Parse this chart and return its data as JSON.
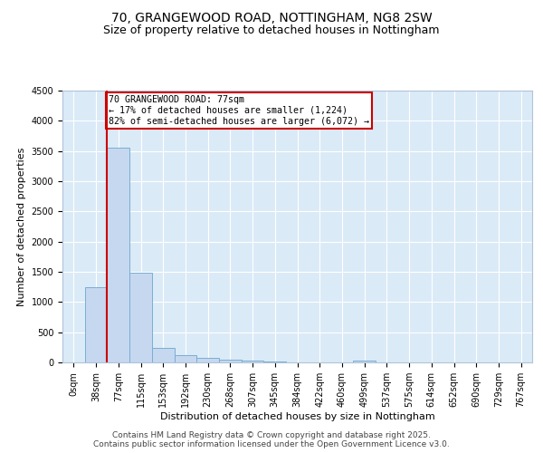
{
  "title_line1": "70, GRANGEWOOD ROAD, NOTTINGHAM, NG8 2SW",
  "title_line2": "Size of property relative to detached houses in Nottingham",
  "xlabel": "Distribution of detached houses by size in Nottingham",
  "ylabel": "Number of detached properties",
  "bar_color": "#c5d8f0",
  "bar_edge_color": "#7aadd4",
  "vline_color": "#cc0000",
  "annotation_text": "70 GRANGEWOOD ROAD: 77sqm\n← 17% of detached houses are smaller (1,224)\n82% of semi-detached houses are larger (6,072) →",
  "annotation_box_color": "#cc0000",
  "plot_bg_color": "#daeaf7",
  "categories": [
    "0sqm",
    "38sqm",
    "77sqm",
    "115sqm",
    "153sqm",
    "192sqm",
    "230sqm",
    "268sqm",
    "307sqm",
    "345sqm",
    "384sqm",
    "422sqm",
    "460sqm",
    "499sqm",
    "537sqm",
    "575sqm",
    "614sqm",
    "652sqm",
    "690sqm",
    "729sqm",
    "767sqm"
  ],
  "values": [
    5,
    1240,
    3560,
    1490,
    240,
    120,
    80,
    50,
    25,
    8,
    4,
    3,
    2,
    30,
    2,
    1,
    1,
    0,
    0,
    0,
    0
  ],
  "ylim": [
    0,
    4500
  ],
  "yticks": [
    0,
    500,
    1000,
    1500,
    2000,
    2500,
    3000,
    3500,
    4000,
    4500
  ],
  "footer_text": "Contains HM Land Registry data © Crown copyright and database right 2025.\nContains public sector information licensed under the Open Government Licence v3.0.",
  "title_fontsize": 10,
  "subtitle_fontsize": 9,
  "axis_label_fontsize": 8,
  "tick_fontsize": 7,
  "footer_fontsize": 6.5
}
